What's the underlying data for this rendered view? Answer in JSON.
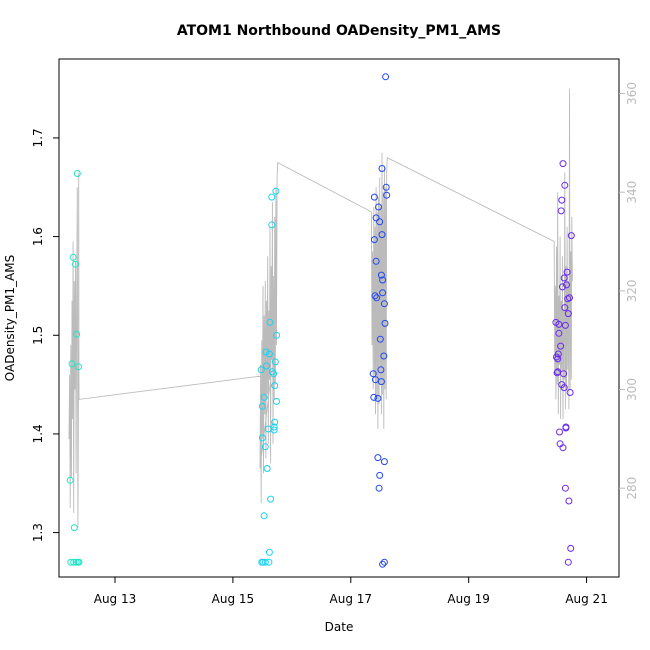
{
  "chart_data": {
    "type": "scatter",
    "title": "ATOM1 Northbound OADensity_PM1_AMS",
    "xlabel": "Date",
    "ylabel": "OADensity_PM1_AMS",
    "x_unit": "days since Aug 12 00:00",
    "xlim": [
      0.05,
      9.55
    ],
    "ylim": [
      1.255,
      1.78
    ],
    "y2lim": [
      262,
      367
    ],
    "x_ticks": [
      {
        "value": 1,
        "label": "Aug 13"
      },
      {
        "value": 3,
        "label": "Aug 15"
      },
      {
        "value": 5,
        "label": "Aug 17"
      },
      {
        "value": 7,
        "label": "Aug 19"
      },
      {
        "value": 9,
        "label": "Aug 21"
      }
    ],
    "y_ticks": [
      {
        "value": 1.3,
        "label": "1.3"
      },
      {
        "value": 1.4,
        "label": "1.4"
      },
      {
        "value": 1.5,
        "label": "1.5"
      },
      {
        "value": 1.6,
        "label": "1.6"
      },
      {
        "value": 1.7,
        "label": "1.7"
      }
    ],
    "y2_ticks": [
      {
        "value": 280,
        "label": "280"
      },
      {
        "value": 300,
        "label": "300"
      },
      {
        "value": 320,
        "label": "320"
      },
      {
        "value": 340,
        "label": "340"
      },
      {
        "value": 360,
        "label": "360"
      }
    ],
    "colors": {
      "axis": "#000000",
      "secondary_axis": "#bbbbbb",
      "line": "#bbbbbb"
    },
    "points": [
      {
        "x": 0.24,
        "y": 1.353,
        "color": "#1ee6c4"
      },
      {
        "x": 0.27,
        "y": 1.471,
        "color": "#1ee6c4"
      },
      {
        "x": 0.29,
        "y": 1.579,
        "color": "#1ee6c4"
      },
      {
        "x": 0.31,
        "y": 1.305,
        "color": "#1ee6c4"
      },
      {
        "x": 0.33,
        "y": 1.572,
        "color": "#1ee6c4"
      },
      {
        "x": 0.35,
        "y": 1.501,
        "color": "#1ee6c4"
      },
      {
        "x": 0.36,
        "y": 1.664,
        "color": "#1ee6c4"
      },
      {
        "x": 0.38,
        "y": 1.468,
        "color": "#1ee6c4"
      },
      {
        "x": 0.25,
        "y": 1.27,
        "color": "#1ee6c4"
      },
      {
        "x": 0.3,
        "y": 1.27,
        "color": "#1ee6c4"
      },
      {
        "x": 0.34,
        "y": 1.27,
        "color": "#1ee6c4"
      },
      {
        "x": 0.37,
        "y": 1.27,
        "color": "#1ee6c4"
      },
      {
        "x": 0.39,
        "y": 1.27,
        "color": "#1ee6c4"
      },
      {
        "x": 3.48,
        "y": 1.465,
        "color": "#1ad2f0"
      },
      {
        "x": 3.5,
        "y": 1.428,
        "color": "#1ad2f0"
      },
      {
        "x": 3.5,
        "y": 1.396,
        "color": "#1ad2f0"
      },
      {
        "x": 3.53,
        "y": 1.437,
        "color": "#1ad2f0"
      },
      {
        "x": 3.53,
        "y": 1.317,
        "color": "#1ad2f0"
      },
      {
        "x": 3.55,
        "y": 1.387,
        "color": "#1ad2f0"
      },
      {
        "x": 3.56,
        "y": 1.483,
        "color": "#1ad2f0"
      },
      {
        "x": 3.57,
        "y": 1.469,
        "color": "#1ad2f0"
      },
      {
        "x": 3.58,
        "y": 1.365,
        "color": "#1ad2f0"
      },
      {
        "x": 3.6,
        "y": 1.405,
        "color": "#1ad2f0"
      },
      {
        "x": 3.62,
        "y": 1.481,
        "color": "#1ad2f0"
      },
      {
        "x": 3.63,
        "y": 1.513,
        "color": "#1ad2f0"
      },
      {
        "x": 3.64,
        "y": 1.334,
        "color": "#1ad2f0"
      },
      {
        "x": 3.66,
        "y": 1.612,
        "color": "#1ad2f0"
      },
      {
        "x": 3.66,
        "y": 1.64,
        "color": "#1ad2f0"
      },
      {
        "x": 3.67,
        "y": 1.463,
        "color": "#1ad2f0"
      },
      {
        "x": 3.69,
        "y": 1.461,
        "color": "#1ad2f0"
      },
      {
        "x": 3.7,
        "y": 1.407,
        "color": "#1ad2f0"
      },
      {
        "x": 3.7,
        "y": 1.404,
        "color": "#1ad2f0"
      },
      {
        "x": 3.71,
        "y": 1.412,
        "color": "#1ad2f0"
      },
      {
        "x": 3.71,
        "y": 1.449,
        "color": "#1ad2f0"
      },
      {
        "x": 3.72,
        "y": 1.473,
        "color": "#1ad2f0"
      },
      {
        "x": 3.73,
        "y": 1.646,
        "color": "#1ad2f0"
      },
      {
        "x": 3.74,
        "y": 1.5,
        "color": "#1ad2f0"
      },
      {
        "x": 3.74,
        "y": 1.433,
        "color": "#1ad2f0"
      },
      {
        "x": 3.49,
        "y": 1.27,
        "color": "#1ad2f0"
      },
      {
        "x": 3.51,
        "y": 1.27,
        "color": "#1ad2f0"
      },
      {
        "x": 3.55,
        "y": 1.27,
        "color": "#1ad2f0"
      },
      {
        "x": 3.61,
        "y": 1.27,
        "color": "#1ad2f0"
      },
      {
        "x": 3.62,
        "y": 1.28,
        "color": "#1ad2f0"
      },
      {
        "x": 5.38,
        "y": 1.461,
        "color": "#2248f0"
      },
      {
        "x": 5.39,
        "y": 1.437,
        "color": "#2248f0"
      },
      {
        "x": 5.4,
        "y": 1.597,
        "color": "#2248f0"
      },
      {
        "x": 5.4,
        "y": 1.64,
        "color": "#2248f0"
      },
      {
        "x": 5.41,
        "y": 1.54,
        "color": "#2248f0"
      },
      {
        "x": 5.42,
        "y": 1.455,
        "color": "#2248f0"
      },
      {
        "x": 5.43,
        "y": 1.575,
        "color": "#2248f0"
      },
      {
        "x": 5.43,
        "y": 1.619,
        "color": "#2248f0"
      },
      {
        "x": 5.44,
        "y": 1.538,
        "color": "#2248f0"
      },
      {
        "x": 5.46,
        "y": 1.436,
        "color": "#2248f0"
      },
      {
        "x": 5.46,
        "y": 1.376,
        "color": "#2248f0"
      },
      {
        "x": 5.47,
        "y": 1.63,
        "color": "#2248f0"
      },
      {
        "x": 5.48,
        "y": 1.345,
        "color": "#2248f0"
      },
      {
        "x": 5.49,
        "y": 1.358,
        "color": "#2248f0"
      },
      {
        "x": 5.49,
        "y": 1.615,
        "color": "#2248f0"
      },
      {
        "x": 5.5,
        "y": 1.496,
        "color": "#2248f0"
      },
      {
        "x": 5.51,
        "y": 1.465,
        "color": "#2248f0"
      },
      {
        "x": 5.52,
        "y": 1.561,
        "color": "#2248f0"
      },
      {
        "x": 5.52,
        "y": 1.453,
        "color": "#2248f0"
      },
      {
        "x": 5.53,
        "y": 1.602,
        "color": "#2248f0"
      },
      {
        "x": 5.53,
        "y": 1.669,
        "color": "#2248f0"
      },
      {
        "x": 5.54,
        "y": 1.556,
        "color": "#2248f0"
      },
      {
        "x": 5.54,
        "y": 1.543,
        "color": "#2248f0"
      },
      {
        "x": 5.56,
        "y": 1.479,
        "color": "#2248f0"
      },
      {
        "x": 5.57,
        "y": 1.372,
        "color": "#2248f0"
      },
      {
        "x": 5.57,
        "y": 1.532,
        "color": "#2248f0"
      },
      {
        "x": 5.58,
        "y": 1.512,
        "color": "#2248f0"
      },
      {
        "x": 5.59,
        "y": 1.762,
        "color": "#2248f0"
      },
      {
        "x": 5.6,
        "y": 1.65,
        "color": "#2248f0"
      },
      {
        "x": 5.61,
        "y": 1.642,
        "color": "#2248f0"
      },
      {
        "x": 5.54,
        "y": 1.268,
        "color": "#2248f0"
      },
      {
        "x": 5.57,
        "y": 1.27,
        "color": "#2248f0"
      },
      {
        "x": 8.48,
        "y": 1.513,
        "color": "#6a2af0"
      },
      {
        "x": 8.49,
        "y": 1.478,
        "color": "#6a2af0"
      },
      {
        "x": 8.5,
        "y": 1.462,
        "color": "#6a2af0"
      },
      {
        "x": 8.51,
        "y": 1.476,
        "color": "#6a2af0"
      },
      {
        "x": 8.51,
        "y": 1.463,
        "color": "#6a2af0"
      },
      {
        "x": 8.52,
        "y": 1.481,
        "color": "#6a2af0"
      },
      {
        "x": 8.53,
        "y": 1.511,
        "color": "#6a2af0"
      },
      {
        "x": 8.53,
        "y": 1.502,
        "color": "#6a2af0"
      },
      {
        "x": 8.54,
        "y": 1.402,
        "color": "#6a2af0"
      },
      {
        "x": 8.55,
        "y": 1.39,
        "color": "#6a2af0"
      },
      {
        "x": 8.56,
        "y": 1.489,
        "color": "#6a2af0"
      },
      {
        "x": 8.57,
        "y": 1.626,
        "color": "#6a2af0"
      },
      {
        "x": 8.58,
        "y": 1.637,
        "color": "#6a2af0"
      },
      {
        "x": 8.58,
        "y": 1.45,
        "color": "#6a2af0"
      },
      {
        "x": 8.59,
        "y": 1.549,
        "color": "#6a2af0"
      },
      {
        "x": 8.6,
        "y": 1.386,
        "color": "#6a2af0"
      },
      {
        "x": 8.6,
        "y": 1.674,
        "color": "#6a2af0"
      },
      {
        "x": 8.61,
        "y": 1.461,
        "color": "#6a2af0"
      },
      {
        "x": 8.62,
        "y": 1.447,
        "color": "#6a2af0"
      },
      {
        "x": 8.62,
        "y": 1.558,
        "color": "#6a2af0"
      },
      {
        "x": 8.63,
        "y": 1.528,
        "color": "#6a2af0"
      },
      {
        "x": 8.63,
        "y": 1.652,
        "color": "#6a2af0"
      },
      {
        "x": 8.64,
        "y": 1.345,
        "color": "#6a2af0"
      },
      {
        "x": 8.64,
        "y": 1.51,
        "color": "#6a2af0"
      },
      {
        "x": 8.65,
        "y": 1.406,
        "color": "#6a2af0"
      },
      {
        "x": 8.65,
        "y": 1.407,
        "color": "#6a2af0"
      },
      {
        "x": 8.66,
        "y": 1.551,
        "color": "#6a2af0"
      },
      {
        "x": 8.67,
        "y": 1.564,
        "color": "#6a2af0"
      },
      {
        "x": 8.68,
        "y": 1.537,
        "color": "#6a2af0"
      },
      {
        "x": 8.69,
        "y": 1.522,
        "color": "#6a2af0"
      },
      {
        "x": 8.7,
        "y": 1.332,
        "color": "#6a2af0"
      },
      {
        "x": 8.71,
        "y": 1.538,
        "color": "#6a2af0"
      },
      {
        "x": 8.72,
        "y": 1.442,
        "color": "#6a2af0"
      },
      {
        "x": 8.73,
        "y": 1.284,
        "color": "#6a2af0"
      },
      {
        "x": 8.74,
        "y": 1.601,
        "color": "#6a2af0"
      },
      {
        "x": 8.69,
        "y": 1.27,
        "color": "#6a2af0"
      }
    ],
    "line_series": {
      "name": "secondary (right axis)",
      "points": [
        [
          0.22,
          290
        ],
        [
          0.23,
          303
        ],
        [
          0.24,
          276
        ],
        [
          0.25,
          309
        ],
        [
          0.26,
          282
        ],
        [
          0.27,
          318
        ],
        [
          0.28,
          294
        ],
        [
          0.29,
          330
        ],
        [
          0.3,
          275
        ],
        [
          0.31,
          322
        ],
        [
          0.32,
          300
        ],
        [
          0.33,
          326
        ],
        [
          0.34,
          283
        ],
        [
          0.35,
          319
        ],
        [
          0.36,
          341
        ],
        [
          0.37,
          272
        ],
        [
          0.38,
          299
        ],
        [
          0.385,
          344
        ],
        [
          0.39,
          298
        ],
        [
          3.65,
          303
        ],
        [
          3.46,
          284
        ],
        [
          3.47,
          305
        ],
        [
          3.48,
          277
        ],
        [
          3.49,
          310
        ],
        [
          3.5,
          290
        ],
        [
          3.51,
          321
        ],
        [
          3.52,
          283
        ],
        [
          3.53,
          315
        ],
        [
          3.54,
          295
        ],
        [
          3.55,
          322
        ],
        [
          3.56,
          286
        ],
        [
          3.57,
          318
        ],
        [
          3.58,
          299
        ],
        [
          3.59,
          327
        ],
        [
          3.6,
          289
        ],
        [
          3.61,
          316
        ],
        [
          3.62,
          302
        ],
        [
          3.63,
          333
        ],
        [
          3.64,
          285
        ],
        [
          3.65,
          325
        ],
        [
          3.66,
          306
        ],
        [
          3.67,
          338
        ],
        [
          3.68,
          289
        ],
        [
          3.69,
          323
        ],
        [
          3.7,
          298
        ],
        [
          3.71,
          335
        ],
        [
          3.72,
          301
        ],
        [
          3.73,
          341
        ],
        [
          3.74,
          309
        ],
        [
          3.75,
          343
        ],
        [
          3.76,
          346
        ],
        [
          5.35,
          336
        ],
        [
          5.36,
          309
        ],
        [
          5.37,
          328
        ],
        [
          5.38,
          300
        ],
        [
          5.39,
          337
        ],
        [
          5.4,
          303
        ],
        [
          5.41,
          333
        ],
        [
          5.42,
          295
        ],
        [
          5.43,
          341
        ],
        [
          5.44,
          298
        ],
        [
          5.45,
          336
        ],
        [
          5.46,
          292
        ],
        [
          5.47,
          339
        ],
        [
          5.48,
          297
        ],
        [
          5.49,
          343
        ],
        [
          5.5,
          301
        ],
        [
          5.51,
          337
        ],
        [
          5.52,
          295
        ],
        [
          5.53,
          348
        ],
        [
          5.54,
          299
        ],
        [
          5.55,
          340
        ],
        [
          5.56,
          292
        ],
        [
          5.57,
          345
        ],
        [
          5.58,
          300
        ],
        [
          5.59,
          341
        ],
        [
          5.6,
          298
        ],
        [
          5.61,
          344
        ],
        [
          5.62,
          347
        ],
        [
          8.45,
          330
        ],
        [
          8.46,
          303
        ],
        [
          8.47,
          321
        ],
        [
          8.48,
          298
        ],
        [
          8.49,
          329
        ],
        [
          8.5,
          301
        ],
        [
          8.51,
          340
        ],
        [
          8.52,
          295
        ],
        [
          8.53,
          319
        ],
        [
          8.54,
          305
        ],
        [
          8.55,
          331
        ],
        [
          8.56,
          294
        ],
        [
          8.57,
          318
        ],
        [
          8.58,
          304
        ],
        [
          8.59,
          327
        ],
        [
          8.6,
          294
        ],
        [
          8.61,
          316
        ],
        [
          8.62,
          302
        ],
        [
          8.63,
          344
        ],
        [
          8.64,
          296
        ],
        [
          8.65,
          325
        ],
        [
          8.66,
          300
        ],
        [
          8.67,
          333
        ],
        [
          8.68,
          304
        ],
        [
          8.69,
          322
        ],
        [
          8.7,
          296
        ],
        [
          8.71,
          361
        ],
        [
          8.72,
          300
        ],
        [
          8.73,
          328
        ],
        [
          8.74,
          302
        ],
        [
          8.75,
          335
        ],
        [
          8.76,
          322
        ]
      ]
    }
  }
}
